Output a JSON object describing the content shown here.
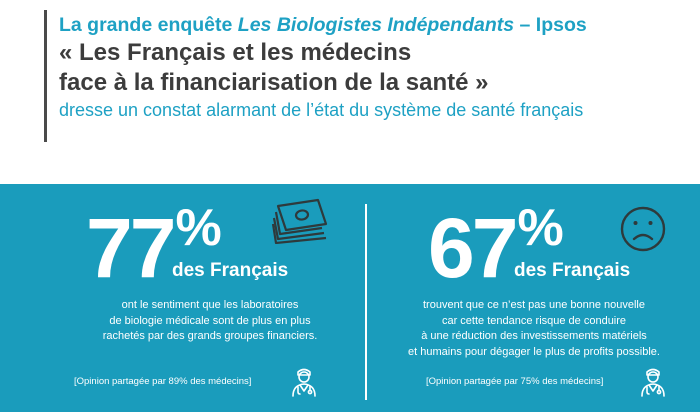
{
  "header": {
    "line1_prefix": "La grande enquête ",
    "line1_italic": "Les Biologistes Indépendants",
    "line1_suffix": " – Ipsos",
    "title_line1": "« Les Français et les médecins",
    "title_line2": "face à la financiarisation de la santé »",
    "subtitle": "dresse un constat alarmant de l’état du système de santé français"
  },
  "colors": {
    "accent": "#1ea1c4",
    "panel": "#1a9cbc",
    "title": "#3c3c3c",
    "icon_dark": "#2e3a3c"
  },
  "stats": [
    {
      "value": "77",
      "unit": "%",
      "audience": "des Français",
      "description": [
        "ont le sentiment que les laboratoires",
        "de biologie médicale sont de plus en plus",
        "rachetés par des grands groupes financiers."
      ],
      "note": "[Opinion partagée par 89% des médecins]",
      "icon": "money-stack-icon"
    },
    {
      "value": "67",
      "unit": "%",
      "audience": "des Français",
      "description": [
        "trouvent que ce n’est pas une bonne nouvelle",
        "car cette tendance risque de conduire",
        "à une réduction des investissements matériels",
        "et humains pour dégager le plus de profits possible."
      ],
      "note": "[Opinion partagée par 75% des médecins]",
      "icon": "sad-face-icon"
    }
  ]
}
